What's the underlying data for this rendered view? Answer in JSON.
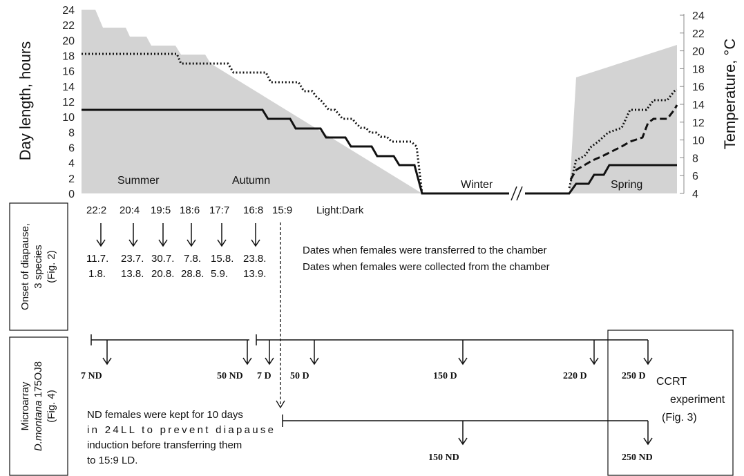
{
  "chart": {
    "left_axis_title": "Day length, hours",
    "right_axis_title": "Temperature, °C",
    "left_ticks": [
      "0",
      "2",
      "4",
      "6",
      "8",
      "10",
      "12",
      "14",
      "16",
      "18",
      "20",
      "22",
      "24"
    ],
    "right_ticks": [
      "4",
      "6",
      "8",
      "10",
      "12",
      "14",
      "16",
      "18",
      "20",
      "22",
      "24"
    ],
    "seasons": {
      "summer": "Summer",
      "autumn": "Autumn",
      "winter": "Winter",
      "spring": "Spring"
    },
    "axis_break": "//",
    "shade_color": "#d3d3d3"
  },
  "photoperiods": {
    "items": [
      "22:2",
      "20:4",
      "19:5",
      "18:6",
      "17:7",
      "16:8",
      "15:9"
    ],
    "suffix": "Light:Dark",
    "transfer_dates": [
      "11.7.",
      "23.7.",
      "30.7.",
      "7.8.",
      "15.8.",
      "23.8."
    ],
    "collect_dates": [
      "1.8.",
      "13.8.",
      "20.8.",
      "28.8.",
      "5.9.",
      "13.9."
    ],
    "transfer_caption": "Dates when females were transferred to the chamber",
    "collect_caption": "Dates when females were collected from the chamber"
  },
  "panel_onset": {
    "lines": [
      "Onset of  diapause,",
      "3 species",
      "(Fig. 2)"
    ]
  },
  "panel_microarray": {
    "line1": "Microarray",
    "line2_species": "D.montana",
    "line2_strain": " 175OJ8",
    "line3": "(Fig. 4)"
  },
  "timeline1": {
    "labels": [
      "7 ND",
      "50 ND"
    ]
  },
  "timeline2": {
    "labels": [
      "7 D",
      "50 D",
      "150 D",
      "220 D",
      "250 D"
    ]
  },
  "timeline3": {
    "labels": [
      "150 ND",
      "250 ND"
    ]
  },
  "nd_note": [
    "ND females were kept for 10 days",
    "in 24LL to prevent diapause",
    "induction before transferring them",
    "to 15:9 LD."
  ],
  "ccrt": {
    "lines": [
      "CCRT",
      "experiment",
      "(Fig. 3)"
    ]
  }
}
